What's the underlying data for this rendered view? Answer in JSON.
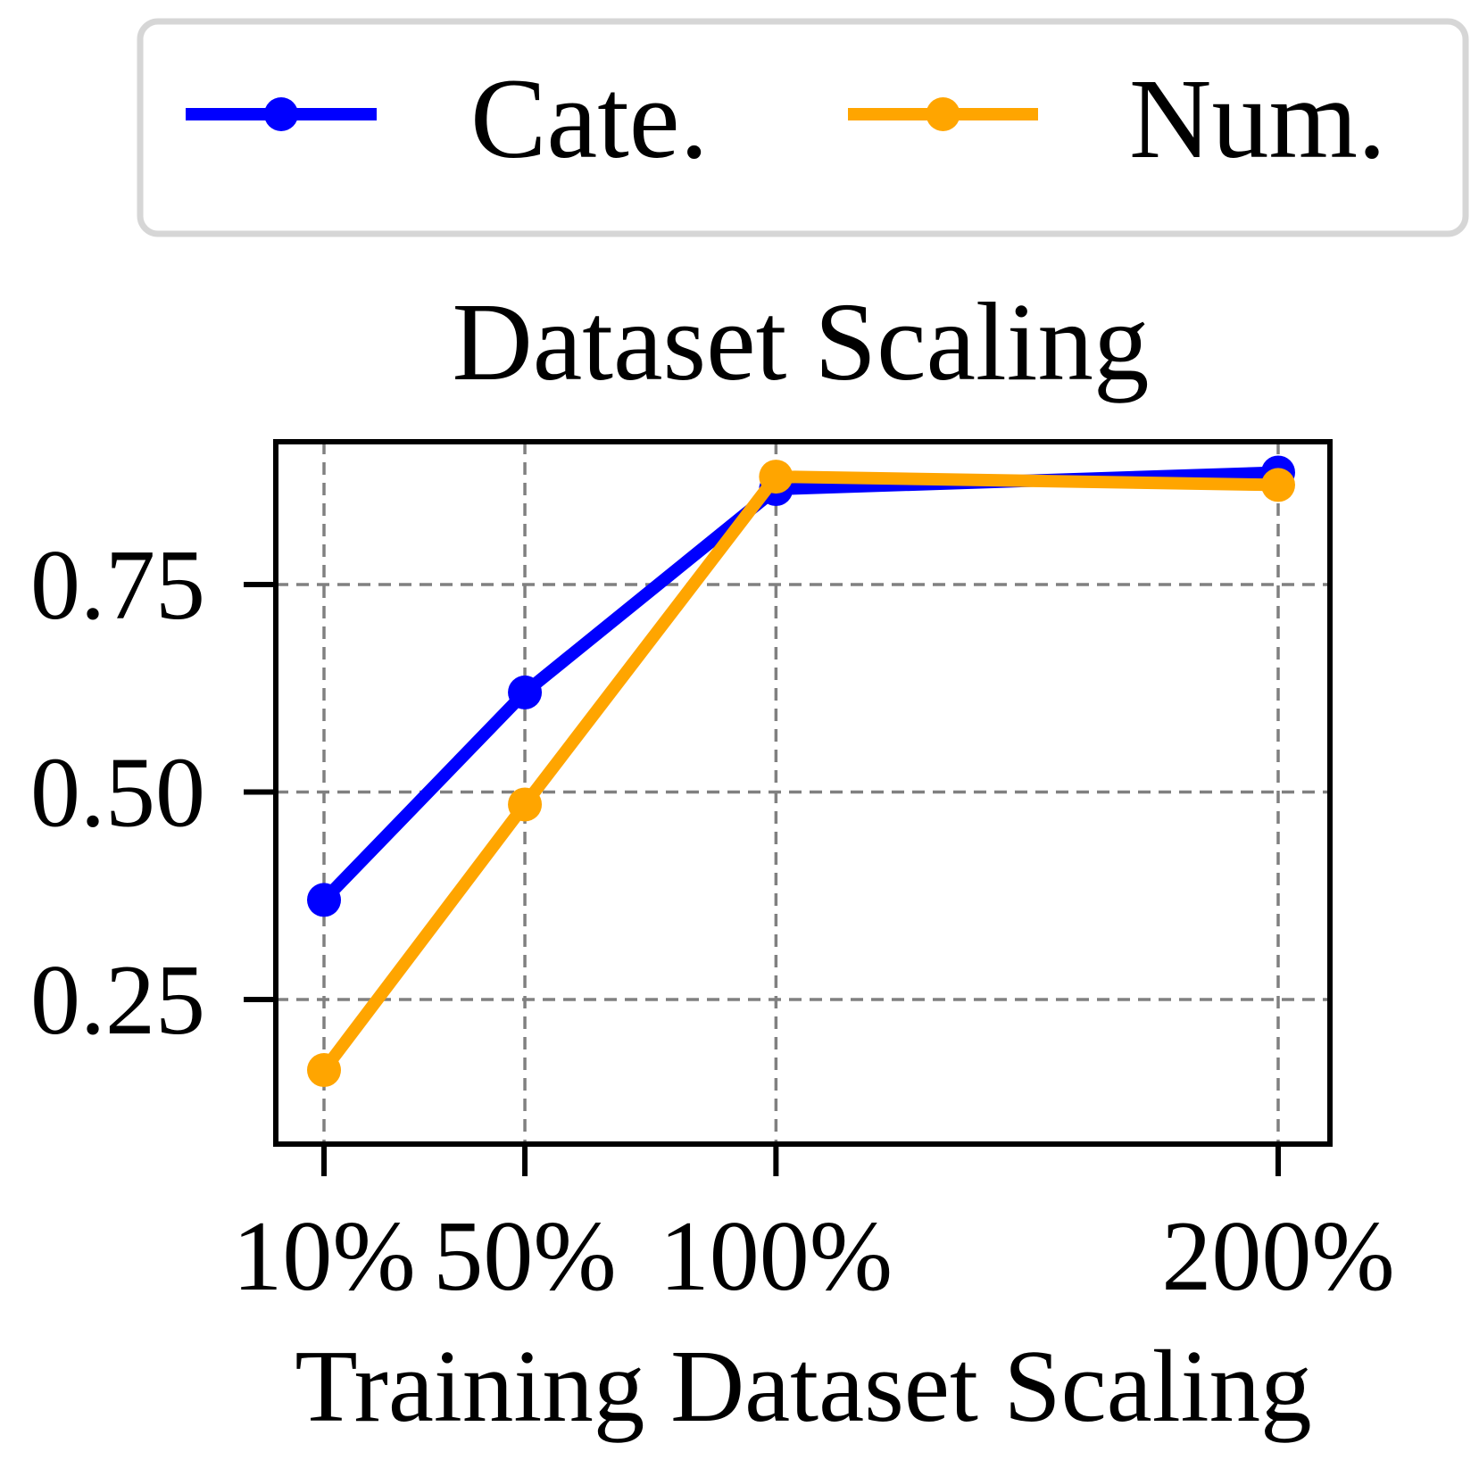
{
  "chart_data": {
    "type": "line",
    "title": "Dataset Scaling",
    "xlabel": "Training Dataset Scaling",
    "ylabel": "",
    "categories": [
      "10%",
      "50%",
      "100%",
      "200%"
    ],
    "x": [
      10,
      50,
      100,
      200
    ],
    "ylim": [
      0.14,
      0.96
    ],
    "yticks": [
      0.25,
      0.5,
      0.75
    ],
    "ytick_labels": [
      "0.25",
      "0.50",
      "0.75"
    ],
    "grid": true,
    "grid_style": "dashed",
    "legend_position": "top, above plot, horizontal",
    "series": [
      {
        "name": "Cate.",
        "color": "#0000ff",
        "values": [
          0.37,
          0.62,
          0.865,
          0.885
        ]
      },
      {
        "name": "Num.",
        "color": "#ffa500",
        "values": [
          0.165,
          0.485,
          0.88,
          0.87
        ]
      }
    ]
  }
}
